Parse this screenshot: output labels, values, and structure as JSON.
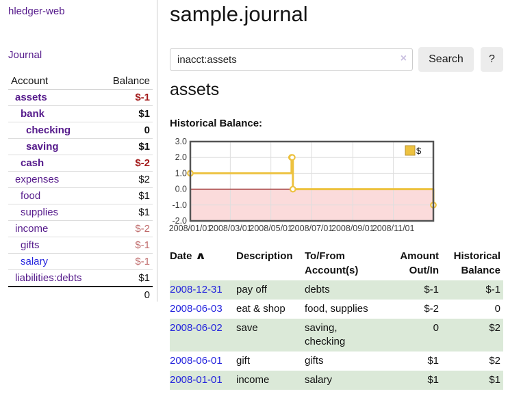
{
  "colors": {
    "link_purple": "#551a8b",
    "link_blue": "#2323dd",
    "negative_strong": "#a31b1b",
    "negative_soft": "#bf6a6a",
    "row_highlight": "#dbe9d8",
    "chart_gold": "#edc240",
    "chart_negative_region": "#fbdbdb",
    "chart_zero_line": "#8b1010",
    "chart_border": "#545454",
    "chart_grid": "#dedede"
  },
  "sidebar": {
    "app_title": "hledger-web",
    "journal_label": "Journal",
    "accounts": {
      "col_account": "Account",
      "col_balance": "Balance",
      "rows": [
        {
          "account": "assets",
          "balance": "$-1",
          "indent": 0,
          "bold": true,
          "negative": "strong"
        },
        {
          "account": "bank",
          "balance": "$1",
          "indent": 1,
          "bold": true
        },
        {
          "account": "checking",
          "balance": "0",
          "indent": 2,
          "bold": true
        },
        {
          "account": "saving",
          "balance": "$1",
          "indent": 2,
          "bold": true
        },
        {
          "account": "cash",
          "balance": "$-2",
          "indent": 1,
          "bold": true,
          "negative": "strong"
        },
        {
          "account": "expenses",
          "balance": "$2",
          "indent": 0
        },
        {
          "account": "food",
          "balance": "$1",
          "indent": 1
        },
        {
          "account": "supplies",
          "balance": "$1",
          "indent": 1
        },
        {
          "account": "income",
          "balance": "$-2",
          "indent": 0,
          "negative": "soft"
        },
        {
          "account": "gifts",
          "balance": "$-1",
          "indent": 1,
          "negative": "soft"
        },
        {
          "account": "salary",
          "balance": "$-1",
          "indent": 1,
          "negative": "soft",
          "link_blue": true
        },
        {
          "account": "liabilities:debts",
          "balance": "$1",
          "indent": 0
        }
      ],
      "total": "0"
    }
  },
  "main": {
    "title": "sample.journal",
    "search": {
      "value": "inacct:assets",
      "clear_icon": "×",
      "button_label": "Search",
      "help_label": "?"
    },
    "account_heading": "assets",
    "chart_label": "Historical Balance:"
  },
  "chart_data": {
    "type": "line",
    "style": "step",
    "title": "Historical Balance:",
    "series": [
      {
        "name": "$",
        "color": "#edc240",
        "x": [
          "2008-01-01",
          "2008-06-01",
          "2008-06-02",
          "2008-06-03",
          "2008-12-31"
        ],
        "x_days": [
          0,
          152,
          153,
          154,
          365
        ],
        "values": [
          1,
          2,
          2,
          0,
          -1
        ]
      }
    ],
    "x_ticks": [
      "2008/01/01",
      "2008/03/01",
      "2008/05/01",
      "2008/07/01",
      "2008/09/01",
      "2008/11/01"
    ],
    "x_tick_days": [
      0,
      60,
      121,
      182,
      244,
      305
    ],
    "y_ticks": [
      "3.0",
      "2.0",
      "1.0",
      "0.0",
      "-1.0",
      "-2.0"
    ],
    "ylim": [
      -2,
      3
    ],
    "xlim_days": [
      0,
      365
    ],
    "grid": true,
    "legend_position": "top-right"
  },
  "register": {
    "sort_icon": "∧",
    "columns": [
      {
        "key": "date",
        "label": "Date",
        "sorted": true
      },
      {
        "key": "description",
        "label": "Description"
      },
      {
        "key": "accounts",
        "label": "To/From Account(s)"
      },
      {
        "key": "amount",
        "label": "Amount Out/In",
        "align": "right"
      },
      {
        "key": "balance",
        "label": "Historical Balance",
        "align": "right"
      }
    ],
    "rows": [
      {
        "date": "2008-12-31",
        "description": "pay off",
        "accounts": "debts",
        "amount": "$-1",
        "amount_negative": true,
        "balance": "$-1",
        "balance_negative": true,
        "highlight": true
      },
      {
        "date": "2008-06-03",
        "description": "eat & shop",
        "accounts": "food, supplies",
        "amount": "$-2",
        "amount_negative": true,
        "balance": "0",
        "highlight": false
      },
      {
        "date": "2008-06-02",
        "description": "save",
        "accounts": "saving, checking",
        "amount": "0",
        "balance": "$2",
        "highlight": true
      },
      {
        "date": "2008-06-01",
        "description": "gift",
        "accounts": "gifts",
        "amount": "$1",
        "balance": "$2",
        "highlight": false
      },
      {
        "date": "2008-01-01",
        "description": "income",
        "accounts": "salary",
        "amount": "$1",
        "balance": "$1",
        "highlight": true
      }
    ]
  }
}
